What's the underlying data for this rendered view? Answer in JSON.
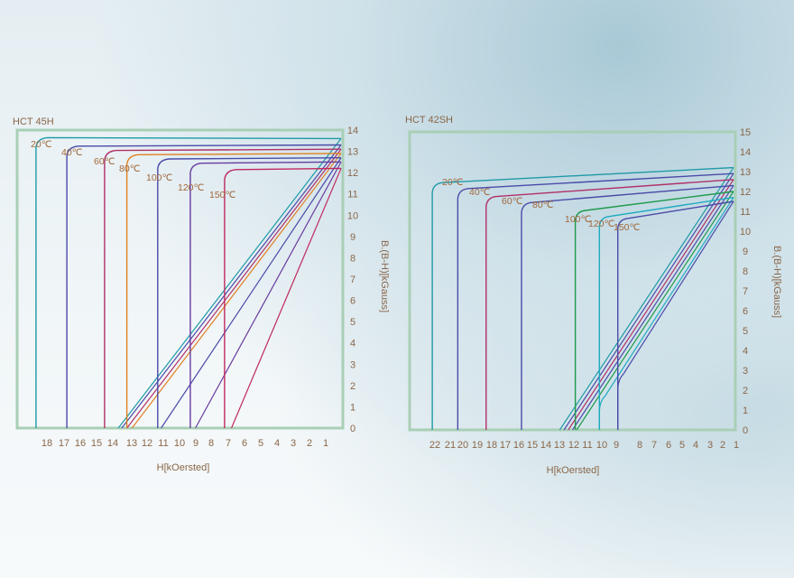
{
  "chart_data": [
    {
      "type": "line",
      "title": "HCT 45H",
      "xlabel": "H[kOersted]",
      "ylabel": "B.(B-H)[kGauss]",
      "x_ticks": [
        "18",
        "17",
        "16",
        "15",
        "14",
        "13",
        "12",
        "11",
        "10",
        "9",
        "8",
        "7",
        "6",
        "5",
        "4",
        "3",
        "2",
        "1"
      ],
      "y_ticks": [
        "0",
        "1",
        "2",
        "3",
        "4",
        "5",
        "6",
        "7",
        "8",
        "9",
        "10",
        "11",
        "12",
        "13",
        "14"
      ],
      "xlim": [
        19,
        0
      ],
      "ylim": [
        0,
        14
      ],
      "grid": false,
      "series": [
        {
          "name": "20℃",
          "color": "#1e9aa6",
          "hc_i": 17.9,
          "br": 13.6,
          "hc_b": 13.1,
          "br_top": 13.6
        },
        {
          "name": "40℃",
          "color": "#4a4aa8",
          "hc_i": 16.1,
          "br": 13.2,
          "hc_b": 12.9,
          "br_top": 13.3
        },
        {
          "name": "60℃",
          "color": "#b03068",
          "hc_i": 13.9,
          "br": 13.0,
          "hc_b": 12.6,
          "br_top": 13.1
        },
        {
          "name": "80℃",
          "color": "#e08020",
          "hc_i": 12.6,
          "br": 12.8,
          "hc_b": 12.3,
          "br_top": 12.9
        },
        {
          "name": "100℃",
          "color": "#4a4aa8",
          "hc_i": 10.8,
          "br": 12.6,
          "hc_b": 10.6,
          "br_top": 12.7
        },
        {
          "name": "120℃",
          "color": "#6a3aa0",
          "hc_i": 8.9,
          "br": 12.4,
          "hc_b": 8.6,
          "br_top": 12.5
        },
        {
          "name": "150℃",
          "color": "#c02860",
          "hc_i": 6.9,
          "br": 12.1,
          "hc_b": 6.5,
          "br_top": 12.2
        }
      ]
    },
    {
      "type": "line",
      "title": "HCT 42SH",
      "xlabel": "H[kOersted]",
      "ylabel": "B.(B-H)[kGauss]",
      "x_ticks": [
        "22",
        "21",
        "20",
        "19",
        "18",
        "17",
        "16",
        "15",
        "14",
        "13",
        "12",
        "11",
        "10",
        "9",
        "8",
        "7",
        "6",
        "5",
        "4",
        "3",
        "2",
        "1"
      ],
      "y_ticks": [
        "0",
        "1",
        "2",
        "3",
        "4",
        "5",
        "6",
        "7",
        "8",
        "9",
        "10",
        "11",
        "12",
        "13",
        "14",
        "15"
      ],
      "xlim": [
        23,
        0
      ],
      "ylim": [
        0,
        15
      ],
      "grid": false,
      "series": [
        {
          "name": "20℃",
          "color": "#1e9aa6",
          "hc_i": 21.4,
          "br": 12.4,
          "hc_b": 12.4,
          "br_top": 13.2
        },
        {
          "name": "40℃",
          "color": "#4a4aa8",
          "hc_i": 19.6,
          "br": 12.1,
          "hc_b": 12.1,
          "br_top": 12.9
        },
        {
          "name": "60℃",
          "color": "#b03068",
          "hc_i": 17.6,
          "br": 11.7,
          "hc_b": 11.8,
          "br_top": 12.6
        },
        {
          "name": "80℃",
          "color": "#4a4aa8",
          "hc_i": 15.1,
          "br": 11.4,
          "hc_b": 11.5,
          "br_top": 12.3
        },
        {
          "name": "100℃",
          "color": "#1e9a4a",
          "hc_i": 11.3,
          "br": 11.0,
          "hc_b": 11.2,
          "br_top": 12.0
        },
        {
          "name": "120℃",
          "color": "#1eaac0",
          "hc_i": 9.6,
          "br": 10.7,
          "hc_b": 10.9,
          "br_top": 11.7
        },
        {
          "name": "150℃",
          "color": "#4a4aa8",
          "hc_i": 8.3,
          "br": 10.6,
          "hc_b": 10.6,
          "br_top": 11.5
        }
      ]
    }
  ],
  "colors": {
    "frame": "#a9cfb6",
    "text": "#8a6648",
    "label": "#a0683c"
  }
}
